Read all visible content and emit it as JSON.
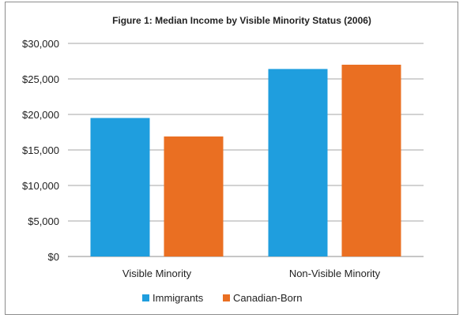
{
  "chart_data": {
    "type": "bar",
    "title": "Figure 1: Median Income by Visible Minority Status (2006)",
    "xlabel": "",
    "ylabel": "",
    "categories": [
      "Visible Minority",
      "Non-Visible Minority"
    ],
    "series": [
      {
        "name": "Immigrants",
        "values": [
          19500,
          26400
        ],
        "color": "#1f9ede"
      },
      {
        "name": "Canadian-Born",
        "values": [
          16900,
          27000
        ],
        "color": "#ea6f22"
      }
    ],
    "ylim": [
      0,
      30000
    ],
    "yticks": [
      0,
      5000,
      10000,
      15000,
      20000,
      25000,
      30000
    ],
    "ytick_labels": [
      "$0",
      "$5,000",
      "$10,000",
      "$15,000",
      "$20,000",
      "$25,000",
      "$30,000"
    ],
    "grid": true,
    "legend": "bottom"
  }
}
